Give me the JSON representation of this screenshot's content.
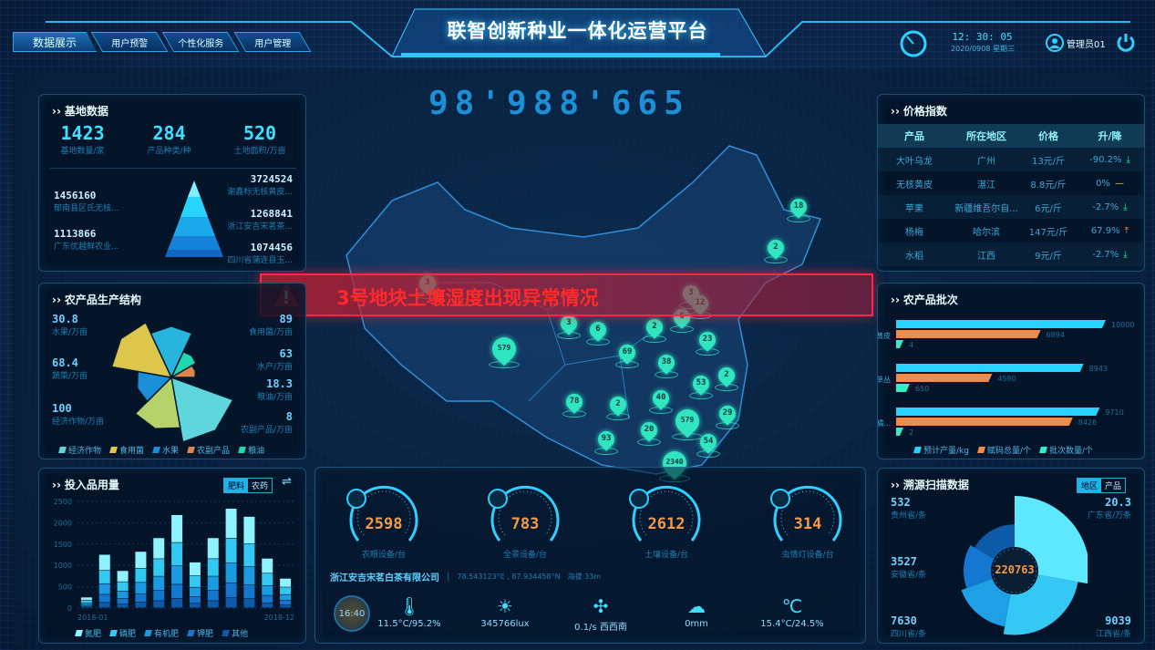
{
  "header": {
    "title": "联智创新种业一体化运营平台",
    "tabs": [
      {
        "label": "数据展示",
        "active": true
      },
      {
        "label": "用户预警"
      },
      {
        "label": "个性化服务"
      },
      {
        "label": "用户管理"
      }
    ],
    "time": "12: 30: 05",
    "date": "2020/0908 星期三",
    "user": "管理员01"
  },
  "total_counter": "98'988'665",
  "alert": {
    "text": "3号地块土壤湿度出现异常情况",
    "color": "#ff2b2b"
  },
  "base_data": {
    "title": "基地数据",
    "stats": [
      {
        "value": "1423",
        "label": "基地数量/家"
      },
      {
        "value": "284",
        "label": "产品种类/种"
      },
      {
        "value": "520",
        "label": "土地面积/万亩"
      }
    ],
    "left": [
      {
        "value": "1456160",
        "label": "郁南县区氏无核..."
      },
      {
        "value": "1113866",
        "label": "广东优越鲜农业..."
      }
    ],
    "right": [
      {
        "value": "3724524",
        "label": "谢鑫标无核黄皮..."
      },
      {
        "value": "1268841",
        "label": "浙江安吉宋茗茶..."
      },
      {
        "value": "1074456",
        "label": "四川省蒲连县玉..."
      }
    ]
  },
  "production": {
    "title": "农产品生产结构",
    "items": [
      {
        "name": "经济作物",
        "value": 100,
        "label": "经济作物/万亩",
        "color": "#5ed6dc"
      },
      {
        "name": "蔬菜",
        "value": 68.4,
        "label": "蔬菜/万亩",
        "color": "#b5d36a"
      },
      {
        "name": "水果",
        "value": 30.8,
        "label": "水果/万亩",
        "color": "#1a8ed6"
      },
      {
        "name": "食用菌",
        "value": 89,
        "label": "食用菌/万亩",
        "color": "#dcc74c"
      },
      {
        "name": "水产",
        "value": 63,
        "label": "水产/万亩",
        "color": "#28b4dc"
      },
      {
        "name": "粮油",
        "value": 18.3,
        "label": "粮油/万亩",
        "color": "#1fd8b0"
      },
      {
        "name": "农副产品",
        "value": 8,
        "label": "农副产品/万亩",
        "color": "#dc844a"
      }
    ],
    "legend": [
      "经济作物",
      "食用菌",
      "水果",
      "农副产品",
      "粮油"
    ]
  },
  "inputs": {
    "title": "投入品用量",
    "toggle": [
      "肥料",
      "农药"
    ],
    "active_toggle": "肥料",
    "chart_data": {
      "type": "bar",
      "stacked": true,
      "categories": [
        "2018-01",
        "2018-02",
        "2018-03",
        "2018-04",
        "2018-05",
        "2018-06",
        "2018-07",
        "2018-08",
        "2018-09",
        "2018-10",
        "2018-11",
        "2018-12"
      ],
      "x_tick_labels": [
        "2018-01",
        "2018-12"
      ],
      "y_ticks": [
        0,
        500,
        1000,
        1500,
        2000,
        2500
      ],
      "ylim": [
        0,
        2500
      ],
      "series": [
        {
          "name": "氮肥",
          "color": "#8ff3ff",
          "values": [
            75,
            375,
            260,
            395,
            490,
            650,
            320,
            490,
            700,
            640,
            350,
            205
          ]
        },
        {
          "name": "磷肥",
          "color": "#32c8f0",
          "values": [
            62,
            310,
            220,
            330,
            410,
            545,
            270,
            410,
            580,
            535,
            290,
            175
          ]
        },
        {
          "name": "有机肥",
          "color": "#1a9ae0",
          "values": [
            50,
            250,
            175,
            265,
            330,
            435,
            215,
            330,
            465,
            430,
            230,
            140
          ]
        },
        {
          "name": "钾肥",
          "color": "#1476cc",
          "values": [
            38,
            190,
            130,
            200,
            245,
            330,
            160,
            245,
            350,
            320,
            175,
            100
          ]
        },
        {
          "name": "其他",
          "color": "#0f5aa8",
          "values": [
            25,
            125,
            85,
            130,
            164,
            220,
            105,
            165,
            235,
            215,
            115,
            70
          ]
        }
      ]
    }
  },
  "price_index": {
    "title": "价格指数",
    "columns": [
      "产品",
      "所在地区",
      "价格",
      "升/降"
    ],
    "rows": [
      {
        "product": "大叶乌龙",
        "region": "广州",
        "price": "13元/斤",
        "change": "-90.2%",
        "trend": "down"
      },
      {
        "product": "无核黄皮",
        "region": "湛江",
        "price": "8.8元/斤",
        "change": "0%",
        "trend": "flat"
      },
      {
        "product": "苹果",
        "region": "新疆维吾尔自...",
        "price": "6元/斤",
        "change": "-2.7%",
        "trend": "down"
      },
      {
        "product": "杨梅",
        "region": "哈尔滨",
        "price": "147元/斤",
        "change": "67.9%",
        "trend": "up"
      },
      {
        "product": "水稻",
        "region": "江西",
        "price": "9元/斤",
        "change": "-2.7%",
        "trend": "down"
      }
    ]
  },
  "batches": {
    "title": "农产品批次",
    "chart_data": {
      "type": "bar",
      "orientation": "horizontal",
      "categories": [
        "黄皮",
        "凤凰单丛",
        "砂糖橘..."
      ],
      "xlim": [
        0,
        10000
      ],
      "series": [
        {
          "name": "预计产量/kg",
          "color": "#27d3ff",
          "values": [
            10000,
            8943,
            9710
          ]
        },
        {
          "name": "赋码总量/个",
          "color": "#f08c45",
          "values": [
            6894,
            4580,
            8426
          ]
        },
        {
          "name": "批次数量/个",
          "color": "#2ff0c8",
          "values": [
            4,
            650,
            2
          ]
        }
      ]
    }
  },
  "trace": {
    "title": "溯源扫描数据",
    "toggle": [
      "地区",
      "产品"
    ],
    "active_toggle": "地区",
    "total": "220763",
    "items": [
      {
        "value": "20.3",
        "label": "广东省/万条",
        "color": "#5ee8ff",
        "weight": 1.0
      },
      {
        "value": "9039",
        "label": "江西省/条",
        "color": "#35c8f5",
        "weight": 0.78
      },
      {
        "value": "7630",
        "label": "四川省/条",
        "color": "#1f9fe6",
        "weight": 0.62
      },
      {
        "value": "3527",
        "label": "安徽省/条",
        "color": "#1478d2",
        "weight": 0.5
      },
      {
        "value": "532",
        "label": "贵州省/条",
        "color": "#0d5aa8",
        "weight": 0.4
      }
    ]
  },
  "devices": [
    {
      "value": "2598",
      "label": "农眼设备/台",
      "icon": "camera-icon"
    },
    {
      "value": "783",
      "label": "全景设备/台",
      "icon": "panorama-icon"
    },
    {
      "value": "2612",
      "label": "土壤设备/台",
      "icon": "soil-sensor-icon"
    },
    {
      "value": "314",
      "label": "虫情灯设备/台",
      "icon": "insect-lamp-icon"
    }
  ],
  "station": {
    "company": "浙江安吉宋茗白茶有限公司",
    "coords": "78.543123°E , 87.934458°N",
    "altitude": "海拔 33m",
    "time": "16:40",
    "weather": [
      {
        "icon": "thermometer-icon",
        "glyph": "🌡",
        "value": "11.5°C/95.2%"
      },
      {
        "icon": "sunlight-icon",
        "glyph": "☀",
        "value": "345766lux"
      },
      {
        "icon": "wind-icon",
        "glyph": "✣",
        "value": "0.1/s 西西南"
      },
      {
        "icon": "rain-icon",
        "glyph": "☁",
        "value": "0mm"
      },
      {
        "icon": "soil-temp-humidity-icon",
        "glyph": "℃",
        "value": "15.4°C/24.5%"
      }
    ]
  },
  "map_markers": [
    "18",
    "2",
    "3",
    "12",
    "6",
    "3",
    "6",
    "2",
    "579",
    "69",
    "23",
    "38",
    "2",
    "53",
    "78",
    "2",
    "40",
    "579",
    "29",
    "20",
    "93",
    "54",
    "2340",
    "3"
  ]
}
